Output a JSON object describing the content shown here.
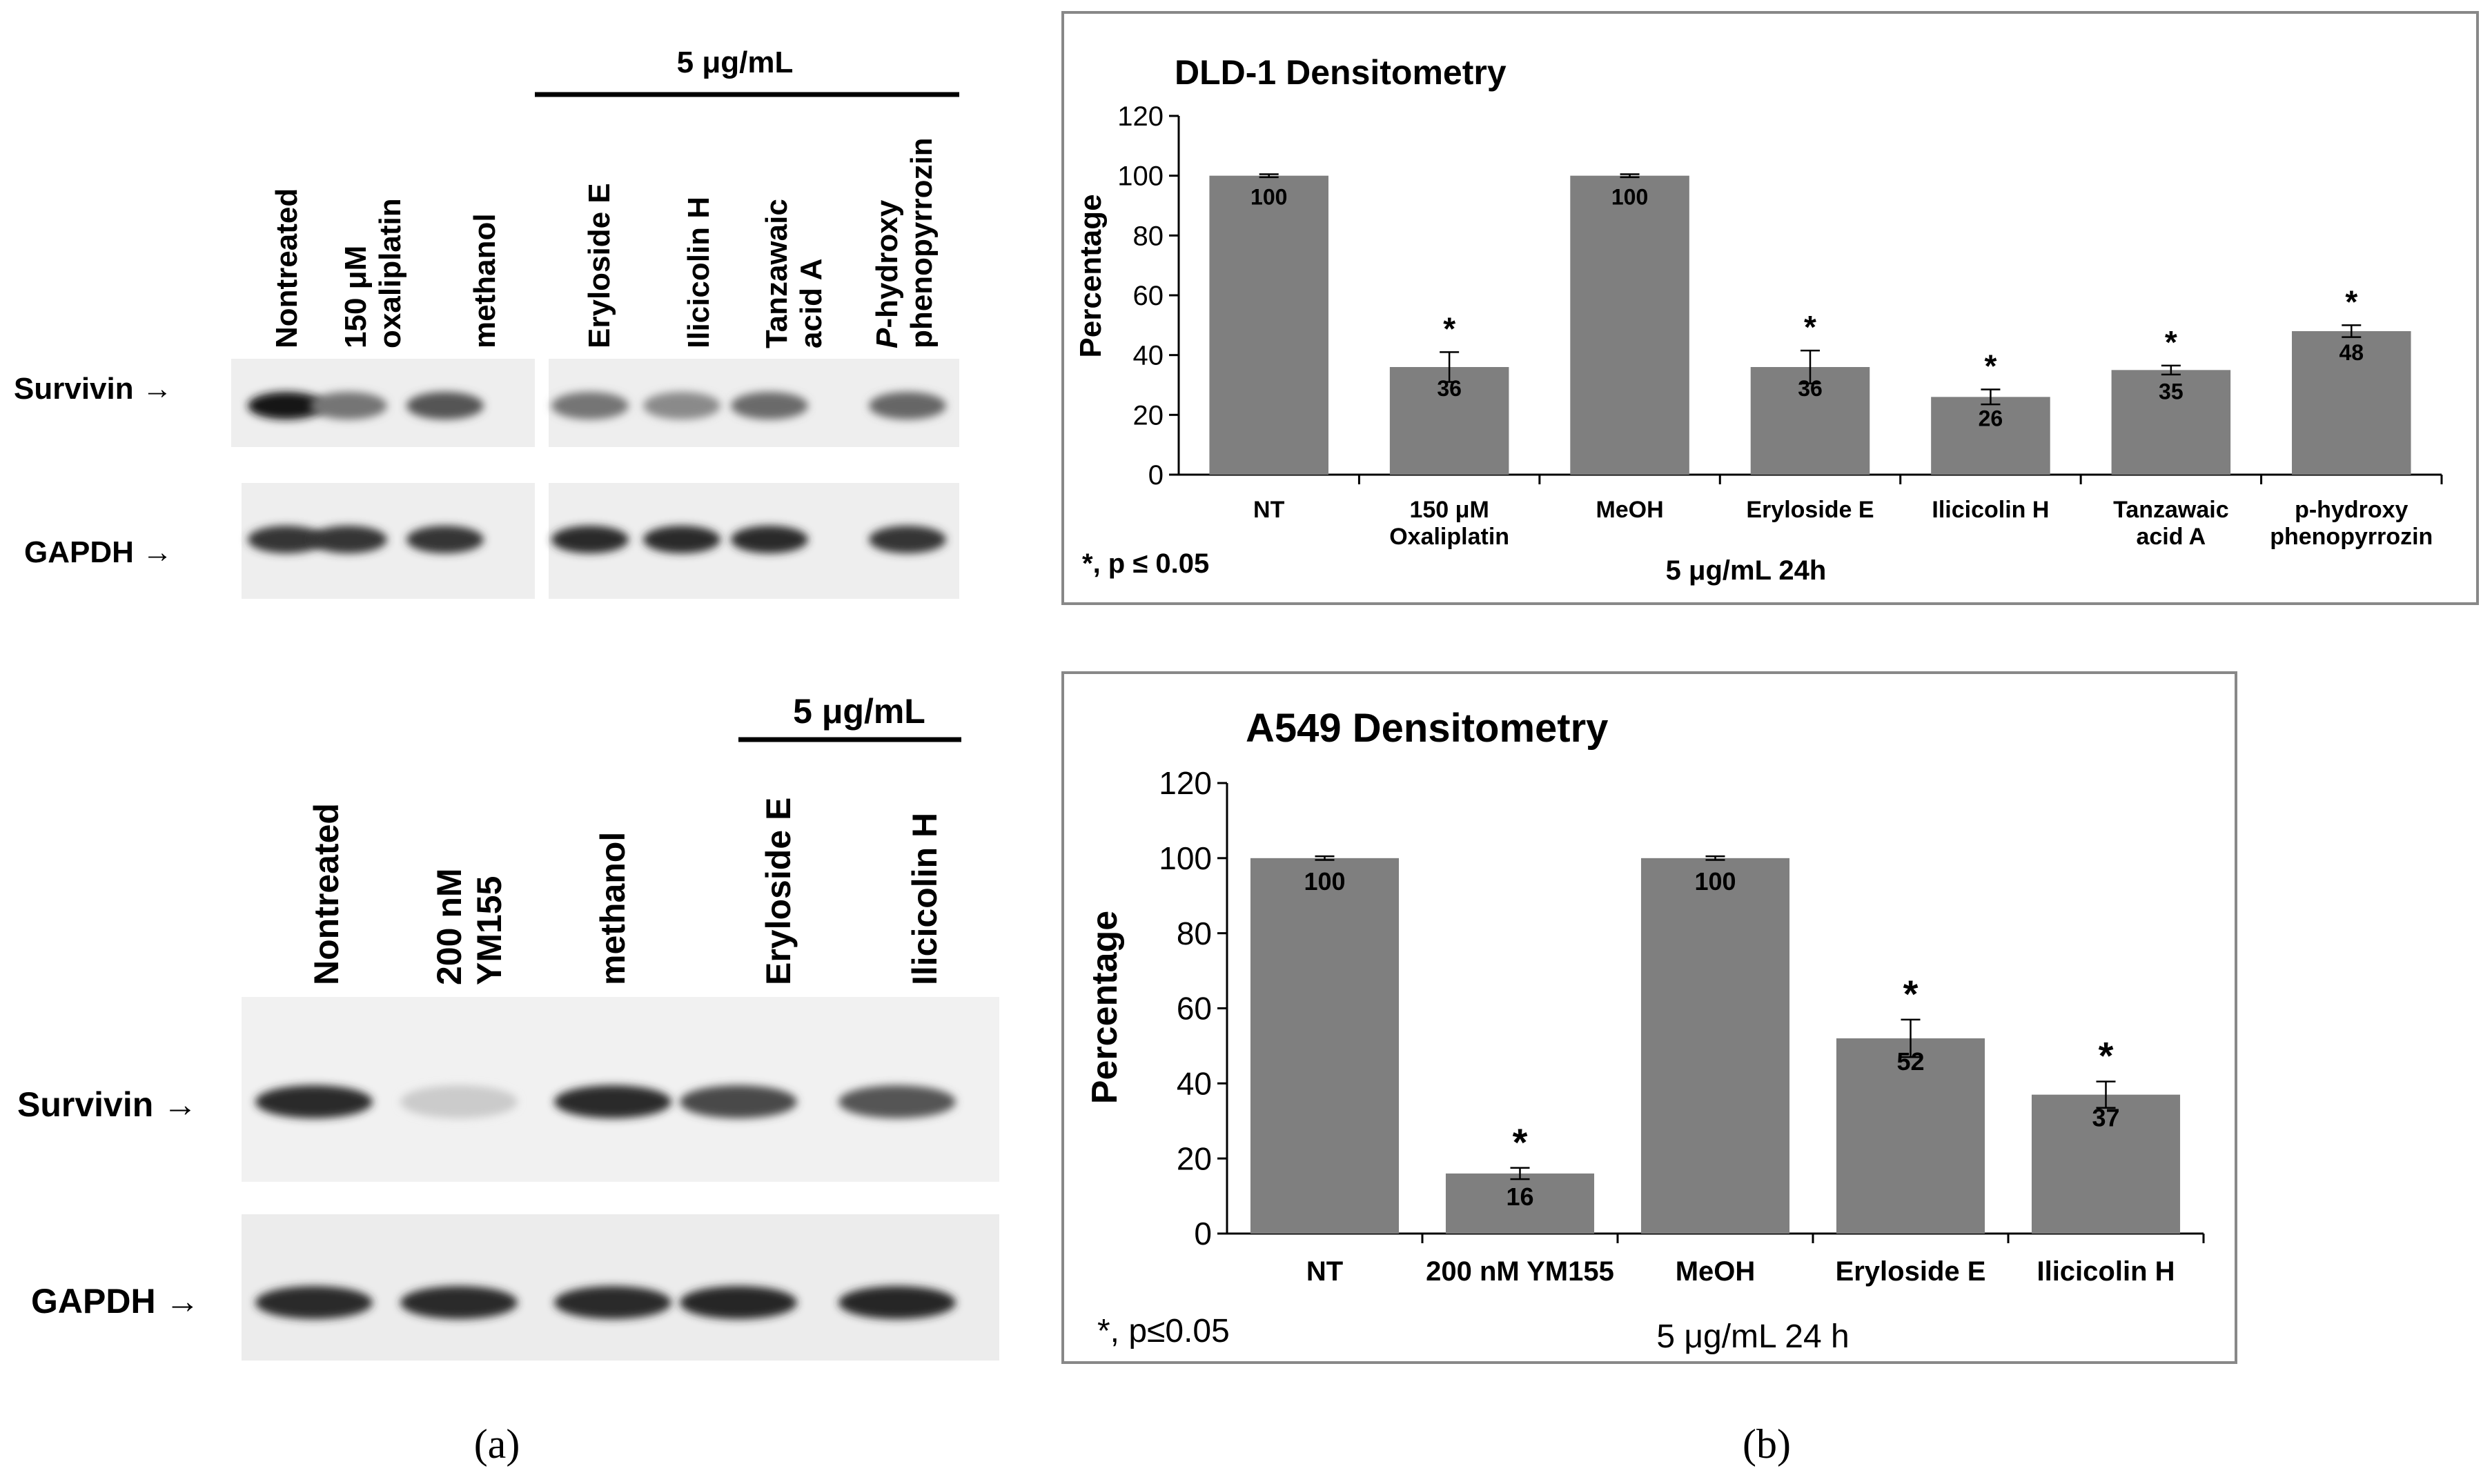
{
  "panel_labels": [
    "(a)",
    "(b)"
  ],
  "blots": [
    {
      "id": "dld1-blot",
      "group_label": "5 μg/mL",
      "lanes": [
        "Nontreated",
        "150 μM oxaliplatin",
        "methanol",
        "Eryloside E",
        "Ilicicolin H",
        "Tanzawaic acid A",
        "P-hydroxy phenopyrrozin"
      ],
      "rows": [
        {
          "label": "Survivin →",
          "intensity": [
            1.0,
            0.55,
            0.7,
            0.55,
            0.45,
            0.6,
            0.62
          ]
        },
        {
          "label": "GAPDH →",
          "intensity": [
            0.85,
            0.85,
            0.85,
            0.9,
            0.9,
            0.9,
            0.85
          ]
        }
      ]
    },
    {
      "id": "a549-blot",
      "group_label": "5 μg/mL",
      "lanes": [
        "Nontreated",
        "200 nM YM155",
        "methanol",
        "Eryloside E",
        "Ilicicolin H"
      ],
      "rows": [
        {
          "label": "Survivin →",
          "intensity": [
            0.9,
            0.15,
            0.9,
            0.75,
            0.7
          ]
        },
        {
          "label": "GAPDH →",
          "intensity": [
            0.9,
            0.9,
            0.9,
            0.92,
            0.92
          ]
        }
      ]
    }
  ],
  "chart_data": [
    {
      "type": "bar",
      "title": "DLD-1 Densitometry",
      "ylabel": "Percentage",
      "xlabel": "5 μg/mL 24h",
      "footnote": "*, p ≤ 0.05",
      "categories": [
        "NT",
        "150 μM Oxaliplatin",
        "MeOH",
        "Eryloside E",
        "Ilicicolin H",
        "Tanzawaic acid A",
        "p-hydroxy phenopyrrozin"
      ],
      "values": [
        100,
        36,
        100,
        36,
        26,
        35,
        48
      ],
      "errors": [
        0.5,
        5,
        0.5,
        5.5,
        2.5,
        1.5,
        2
      ],
      "significant": [
        false,
        true,
        false,
        true,
        true,
        true,
        true
      ],
      "data_labels": [
        "100",
        "36",
        "100",
        "36",
        "26",
        "35",
        "48"
      ],
      "ylim": [
        0,
        120
      ],
      "yticks": [
        0,
        20,
        40,
        60,
        80,
        100,
        120
      ],
      "bar_color": "#7f7f7f"
    },
    {
      "type": "bar",
      "title": "A549 Densitometry",
      "ylabel": "Percentage",
      "xlabel": "5 μg/mL 24 h",
      "footnote": "*, p≤0.05",
      "categories": [
        "NT",
        "200 nM YM155",
        "MeOH",
        "Eryloside E",
        "Ilicicolin H"
      ],
      "values": [
        100,
        16,
        100,
        52,
        37
      ],
      "errors": [
        0.5,
        1.5,
        0.5,
        5,
        3.5
      ],
      "significant": [
        false,
        true,
        false,
        true,
        true
      ],
      "data_labels": [
        "100",
        "16",
        "100",
        "52",
        "37"
      ],
      "ylim": [
        0,
        120
      ],
      "yticks": [
        0,
        20,
        40,
        60,
        80,
        100,
        120
      ],
      "bar_color": "#7f7f7f"
    }
  ]
}
